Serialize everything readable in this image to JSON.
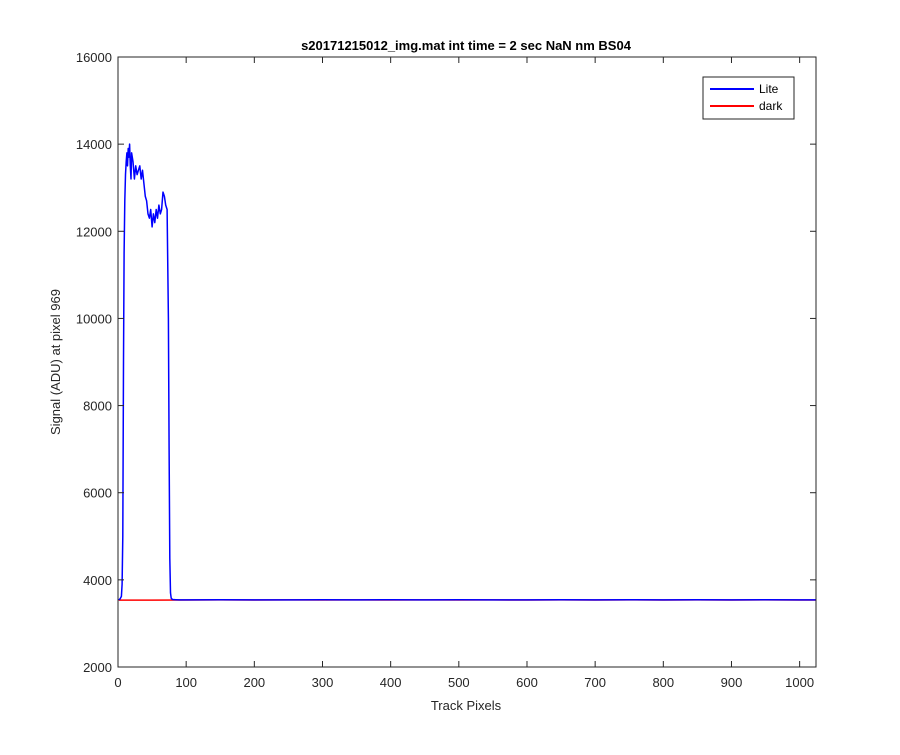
{
  "chart_data": {
    "type": "line",
    "title": "s20171215012_img.mat int time = 2 sec  NaN nm BS04",
    "xlabel": "Track Pixels",
    "ylabel": "Signal (ADU) at pixel 969",
    "xlim": [
      0,
      1024
    ],
    "ylim": [
      2000,
      16000
    ],
    "xticks": [
      0,
      100,
      200,
      300,
      400,
      500,
      600,
      700,
      800,
      900,
      1000
    ],
    "yticks": [
      2000,
      4000,
      6000,
      8000,
      10000,
      12000,
      14000,
      16000
    ],
    "grid": false,
    "legend_position": "top-right",
    "series": [
      {
        "name": "Lite",
        "color": "#0000ff",
        "x": [
          1,
          3,
          5,
          6,
          7,
          8,
          9,
          10,
          11,
          12,
          13,
          14,
          15,
          16,
          17,
          18,
          19,
          20,
          22,
          24,
          26,
          28,
          30,
          32,
          34,
          36,
          38,
          40,
          42,
          44,
          46,
          48,
          50,
          52,
          54,
          56,
          58,
          60,
          62,
          64,
          66,
          68,
          70,
          72,
          74,
          75,
          76,
          77,
          78,
          80,
          85,
          90,
          100,
          150,
          200,
          250,
          300,
          350,
          400,
          450,
          500,
          550,
          600,
          650,
          700,
          750,
          800,
          850,
          900,
          950,
          1000,
          1024
        ],
        "y": [
          3540,
          3560,
          3620,
          3900,
          5000,
          9000,
          11500,
          12700,
          13300,
          13600,
          13800,
          13500,
          13900,
          13700,
          14000,
          13500,
          13200,
          13800,
          13600,
          13200,
          13500,
          13300,
          13400,
          13500,
          13200,
          13400,
          13100,
          12800,
          12700,
          12400,
          12300,
          12500,
          12100,
          12400,
          12200,
          12500,
          12300,
          12600,
          12400,
          12500,
          12900,
          12800,
          12600,
          12500,
          10000,
          7000,
          4500,
          3700,
          3580,
          3550,
          3545,
          3540,
          3540,
          3545,
          3540,
          3540,
          3545,
          3540,
          3545,
          3540,
          3545,
          3540,
          3540,
          3545,
          3540,
          3545,
          3540,
          3545,
          3540,
          3545,
          3540,
          3540
        ]
      },
      {
        "name": "dark",
        "color": "#ff0000",
        "x": [
          1,
          50,
          100,
          150,
          200,
          250,
          300,
          350,
          400,
          450,
          500,
          550,
          600,
          650,
          700,
          750,
          800,
          850,
          900,
          950,
          1000,
          1024
        ],
        "y": [
          3535,
          3535,
          3538,
          3540,
          3538,
          3540,
          3538,
          3540,
          3538,
          3540,
          3538,
          3540,
          3538,
          3540,
          3538,
          3540,
          3538,
          3540,
          3538,
          3540,
          3538,
          3538
        ]
      }
    ]
  }
}
